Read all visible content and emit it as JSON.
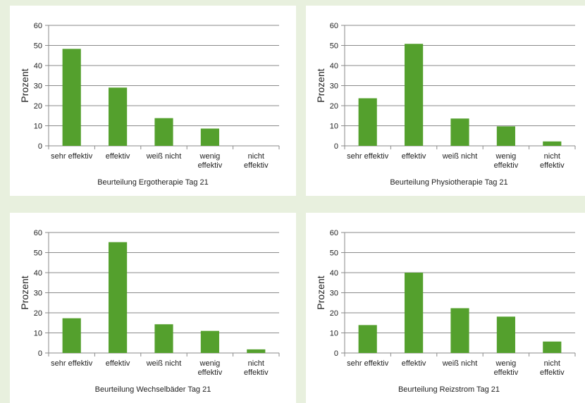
{
  "chart_data": [
    {
      "type": "bar",
      "title": "Beurteilung Ergotherapie Tag 21",
      "xlabel": "",
      "ylabel": "Prozent",
      "categories": [
        "sehr effektiv",
        "effektiv",
        "weiß nicht",
        "wenig effektiv",
        "nicht effektiv"
      ],
      "categories_lines": [
        [
          "sehr effektiv"
        ],
        [
          "effektiv"
        ],
        [
          "weiß nicht"
        ],
        [
          "wenig",
          "effektiv"
        ],
        [
          "nicht",
          "effektiv"
        ]
      ],
      "values": [
        48.3,
        29.0,
        13.8,
        8.6,
        0
      ],
      "ylim": [
        0,
        60
      ],
      "yticks": [
        0,
        10,
        20,
        30,
        40,
        50,
        60
      ],
      "grid": true,
      "legend": "none",
      "color": "#54a02d"
    },
    {
      "type": "bar",
      "title": "Beurteilung Physiotherapie Tag 21",
      "xlabel": "",
      "ylabel": "Prozent",
      "categories": [
        "sehr effektiv",
        "effektiv",
        "weiß nicht",
        "wenig effektiv",
        "nicht effektiv"
      ],
      "categories_lines": [
        [
          "sehr effektiv"
        ],
        [
          "effektiv"
        ],
        [
          "weiß nicht"
        ],
        [
          "wenig",
          "effektiv"
        ],
        [
          "nicht",
          "effektiv"
        ]
      ],
      "values": [
        23.7,
        50.8,
        13.6,
        9.7,
        2.2
      ],
      "ylim": [
        0,
        60
      ],
      "yticks": [
        0,
        10,
        20,
        30,
        40,
        50,
        60
      ],
      "grid": true,
      "legend": "none",
      "color": "#54a02d"
    },
    {
      "type": "bar",
      "title": "Beurteilung Wechselbäder Tag 21",
      "xlabel": "",
      "ylabel": "Prozent",
      "categories": [
        "sehr effektiv",
        "effektiv",
        "weiß nicht",
        "wenig effektiv",
        "nicht effektiv"
      ],
      "categories_lines": [
        [
          "sehr effektiv"
        ],
        [
          "effektiv"
        ],
        [
          "weiß nicht"
        ],
        [
          "wenig",
          "effektiv"
        ],
        [
          "nicht",
          "effektiv"
        ]
      ],
      "values": [
        17.3,
        55.2,
        14.3,
        11.0,
        1.8
      ],
      "ylim": [
        0,
        60
      ],
      "yticks": [
        0,
        10,
        20,
        30,
        40,
        50,
        60
      ],
      "grid": true,
      "legend": "none",
      "color": "#54a02d"
    },
    {
      "type": "bar",
      "title": "Beurteilung Reizstrom Tag 21",
      "xlabel": "",
      "ylabel": "Prozent",
      "categories": [
        "sehr effektiv",
        "effektiv",
        "weiß nicht",
        "wenig effektiv",
        "nicht effektiv"
      ],
      "categories_lines": [
        [
          "sehr effektiv"
        ],
        [
          "effektiv"
        ],
        [
          "weiß nicht"
        ],
        [
          "wenig",
          "effektiv"
        ],
        [
          "nicht",
          "effektiv"
        ]
      ],
      "values": [
        13.9,
        40.0,
        22.3,
        18.1,
        5.7
      ],
      "ylim": [
        0,
        60
      ],
      "yticks": [
        0,
        10,
        20,
        30,
        40,
        50,
        60
      ],
      "grid": true,
      "legend": "none",
      "color": "#54a02d"
    }
  ],
  "colors": {
    "page_background": "#e8f0de",
    "panel_background": "#ffffff",
    "bar": "#54a02d",
    "grid": "#8a8a8a",
    "text": "#222222"
  }
}
